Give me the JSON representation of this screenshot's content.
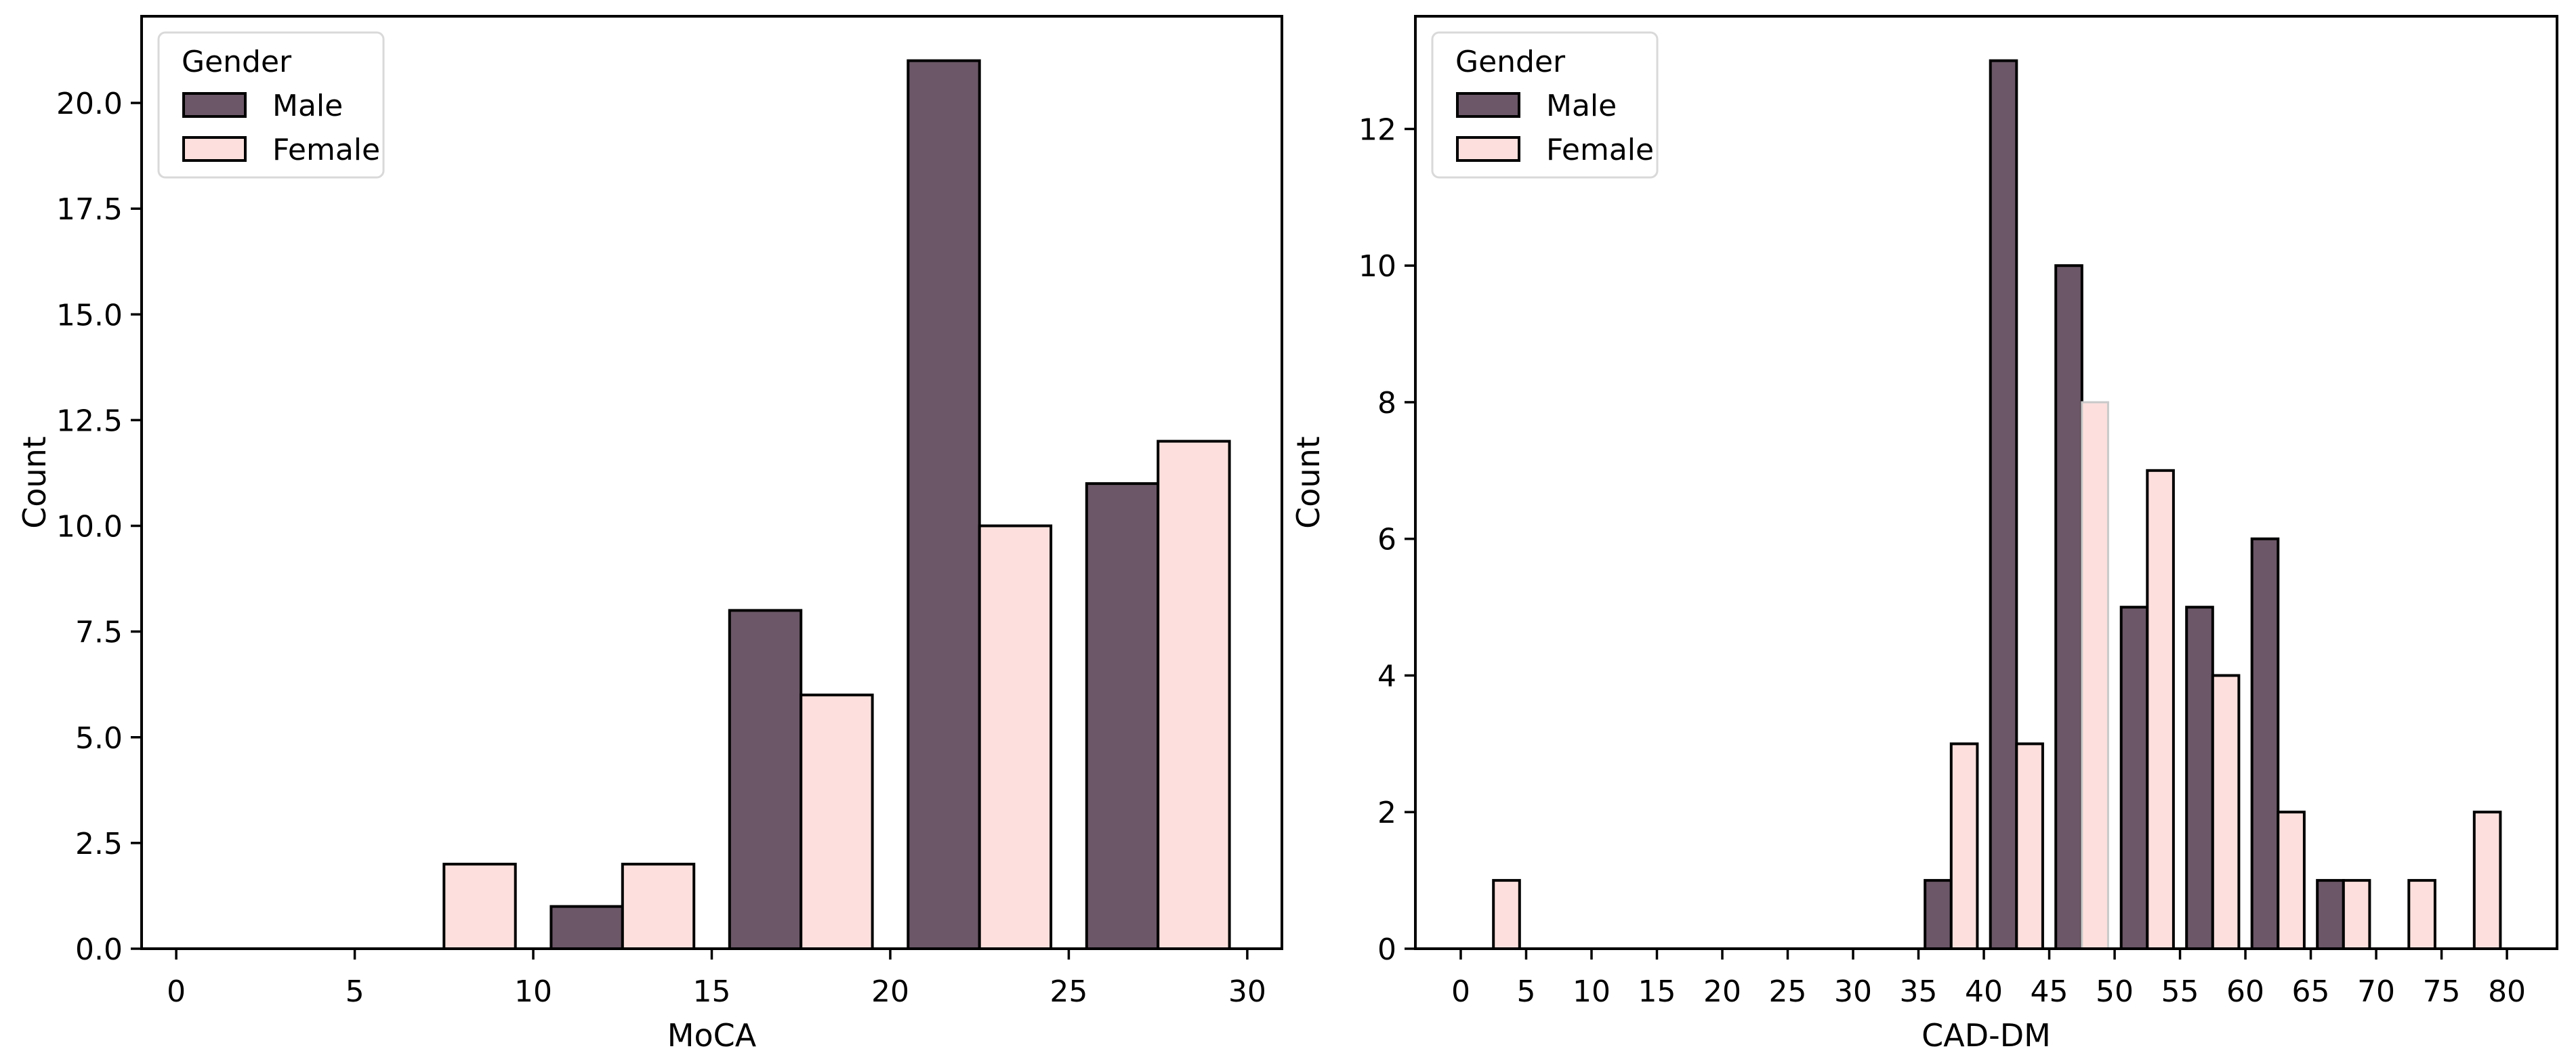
{
  "colors": {
    "male_fill": "#6b5767",
    "female_fill": "#fde0dd",
    "bar_edge": "#000000",
    "special_bar_edge": "#c9c9c9",
    "spine": "#000000",
    "legend_border": "#d9d9d9",
    "legend_bg": "#ffffff",
    "text": "#000000"
  },
  "legend": {
    "title": "Gender",
    "position": "upper-left",
    "items": [
      {
        "label": "Male",
        "color": "#6b5767"
      },
      {
        "label": "Female",
        "color": "#fde0dd"
      }
    ]
  },
  "chart_data": [
    {
      "type": "bar",
      "subtype": "dodged-histogram",
      "title": "",
      "xlabel": "MoCA",
      "ylabel": "Count",
      "xlim": [
        -0.97,
        30.97
      ],
      "ylim": [
        0,
        22.05
      ],
      "grid": false,
      "shrink": 0.8,
      "xticks": [
        0,
        5,
        10,
        15,
        20,
        25,
        30
      ],
      "xtick_labels": [
        "0",
        "5",
        "10",
        "15",
        "20",
        "25",
        "30"
      ],
      "yticks": [
        0,
        2.5,
        5,
        7.5,
        10,
        12.5,
        15,
        17.5,
        20
      ],
      "ytick_labels": [
        "0.0",
        "2.5",
        "5.0",
        "7.5",
        "10.0",
        "12.5",
        "15.0",
        "17.5",
        "20.0"
      ],
      "bins": [
        [
          0,
          5
        ],
        [
          5,
          10
        ],
        [
          10,
          15
        ],
        [
          15,
          20
        ],
        [
          20,
          25
        ],
        [
          25,
          30
        ]
      ],
      "series": [
        {
          "name": "Male",
          "color": "#6b5767",
          "values": [
            0,
            0,
            1,
            8,
            21,
            11
          ]
        },
        {
          "name": "Female",
          "color": "#fde0dd",
          "values": [
            0,
            2,
            2,
            6,
            10,
            12
          ]
        }
      ],
      "special_edges": []
    },
    {
      "type": "bar",
      "subtype": "dodged-histogram",
      "title": "",
      "xlabel": "CAD-DM",
      "ylabel": "Count",
      "xlim": [
        -3.47,
        83.83
      ],
      "ylim": [
        0,
        13.65
      ],
      "grid": false,
      "shrink": 0.8,
      "xticks": [
        0,
        5,
        10,
        15,
        20,
        25,
        30,
        35,
        40,
        45,
        50,
        55,
        60,
        65,
        70,
        75,
        80
      ],
      "xtick_labels": [
        "0",
        "5",
        "10",
        "15",
        "20",
        "25",
        "30",
        "35",
        "40",
        "45",
        "50",
        "55",
        "60",
        "65",
        "70",
        "75",
        "80"
      ],
      "yticks": [
        0,
        2,
        4,
        6,
        8,
        10,
        12
      ],
      "ytick_labels": [
        "0",
        "2",
        "4",
        "6",
        "8",
        "10",
        "12"
      ],
      "bins": [
        [
          0,
          5
        ],
        [
          5,
          10
        ],
        [
          10,
          15
        ],
        [
          15,
          20
        ],
        [
          20,
          25
        ],
        [
          25,
          30
        ],
        [
          30,
          35
        ],
        [
          35,
          40
        ],
        [
          40,
          45
        ],
        [
          45,
          50
        ],
        [
          50,
          55
        ],
        [
          55,
          60
        ],
        [
          60,
          65
        ],
        [
          65,
          70
        ],
        [
          70,
          75
        ],
        [
          75,
          80
        ]
      ],
      "series": [
        {
          "name": "Male",
          "color": "#6b5767",
          "values": [
            0,
            0,
            0,
            0,
            0,
            0,
            0,
            1,
            13,
            10,
            5,
            5,
            6,
            1,
            0,
            0
          ]
        },
        {
          "name": "Female",
          "color": "#fde0dd",
          "values": [
            1,
            0,
            0,
            0,
            0,
            0,
            0,
            3,
            3,
            8,
            7,
            4,
            2,
            1,
            1,
            2
          ]
        }
      ],
      "special_edges": [
        {
          "series_index": 1,
          "bin_index": 9,
          "edge_color": "#c9c9c9"
        }
      ]
    }
  ]
}
